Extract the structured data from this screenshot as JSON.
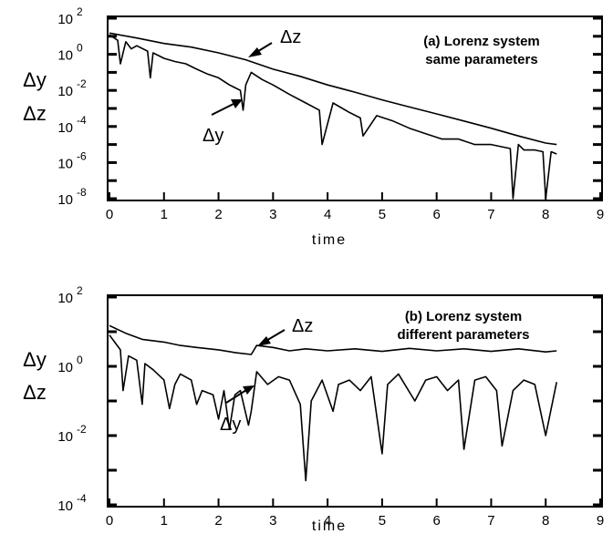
{
  "chart_data": [
    {
      "type": "line",
      "title": "(a) Lorenz system",
      "subtitle": "same parameters",
      "xlabel": "time",
      "ylabel": [
        "Δy",
        "Δz"
      ],
      "yscale": "log",
      "xlim": [
        0,
        9
      ],
      "ylim": [
        1e-08,
        100
      ],
      "x_ticks": [
        "0",
        "1",
        "2",
        "3",
        "4",
        "5",
        "6",
        "7",
        "8",
        "9"
      ],
      "y_ticks": [
        {
          "base": "10",
          "exp": "2"
        },
        {
          "base": "10",
          "exp": "0"
        },
        {
          "base": "10",
          "exp": "-2"
        },
        {
          "base": "10",
          "exp": "-4"
        },
        {
          "base": "10",
          "exp": "-6"
        },
        {
          "base": "10",
          "exp": "-8"
        }
      ],
      "annotations": [
        {
          "text": "Δz",
          "points_to_series": "Δz",
          "at_x": 2.7
        },
        {
          "text": "Δy",
          "points_to_series": "Δy",
          "at_x": 2.5
        }
      ],
      "series": [
        {
          "name": "Δz",
          "x": [
            0,
            0.5,
            1,
            1.5,
            2,
            2.5,
            3,
            3.5,
            4,
            4.5,
            5,
            5.5,
            6,
            6.5,
            7,
            7.5,
            8,
            8.2
          ],
          "y": [
            15,
            8,
            4,
            2.5,
            1.2,
            0.5,
            0.15,
            0.06,
            0.02,
            0.008,
            0.003,
            0.0012,
            0.0005,
            0.0002,
            8e-05,
            3e-05,
            1.2e-05,
            1e-05
          ]
        },
        {
          "name": "Δy",
          "x": [
            0,
            0.15,
            0.2,
            0.3,
            0.4,
            0.5,
            0.7,
            0.75,
            0.8,
            1.0,
            1.2,
            1.4,
            1.6,
            1.8,
            2.0,
            2.2,
            2.4,
            2.45,
            2.5,
            2.6,
            2.8,
            3.0,
            3.3,
            3.6,
            3.85,
            3.9,
            4.1,
            4.4,
            4.6,
            4.65,
            4.9,
            5.2,
            5.5,
            5.8,
            6.1,
            6.4,
            6.7,
            7.0,
            7.35,
            7.4,
            7.5,
            7.6,
            7.8,
            7.95,
            8.0,
            8.1,
            8.2
          ],
          "y": [
            12,
            6,
            0.3,
            5,
            2,
            3,
            1.5,
            0.05,
            1.2,
            0.6,
            0.4,
            0.3,
            0.15,
            0.08,
            0.05,
            0.02,
            0.01,
            0.0008,
            0.02,
            0.1,
            0.04,
            0.02,
            0.006,
            0.002,
            0.0008,
            1e-05,
            0.002,
            0.0006,
            0.0003,
            3e-05,
            0.0004,
            0.0002,
            8e-05,
            4e-05,
            2e-05,
            2e-05,
            1e-05,
            1e-05,
            6e-06,
            1e-08,
            1e-05,
            5e-06,
            5e-06,
            4e-06,
            1e-08,
            4e-06,
            3e-06
          ]
        }
      ]
    },
    {
      "type": "line",
      "title": "(b) Lorenz system",
      "subtitle": "different parameters",
      "xlabel": "time",
      "ylabel": [
        "Δy",
        "Δz"
      ],
      "yscale": "log",
      "xlim": [
        0,
        9
      ],
      "ylim": [
        0.0001,
        100
      ],
      "x_ticks": [
        "0",
        "1",
        "2",
        "3",
        "4",
        "5",
        "6",
        "7",
        "8",
        "9"
      ],
      "y_ticks": [
        {
          "base": "10",
          "exp": "2"
        },
        {
          "base": "10",
          "exp": "0"
        },
        {
          "base": "10",
          "exp": "-2"
        },
        {
          "base": "10",
          "exp": "-4"
        }
      ],
      "annotations": [
        {
          "text": "Δz",
          "points_to_series": "Δz",
          "at_x": 2.7
        },
        {
          "text": "Δy",
          "points_to_series": "Δy",
          "at_x": 2.6
        }
      ],
      "series": [
        {
          "name": "Δz",
          "x": [
            0,
            0.3,
            0.6,
            1.0,
            1.3,
            1.6,
            2.0,
            2.3,
            2.6,
            2.7,
            3.0,
            3.3,
            3.6,
            4.0,
            4.5,
            5.0,
            5.5,
            6.0,
            6.5,
            7.0,
            7.5,
            8.0,
            8.2
          ],
          "y": [
            15,
            9,
            6,
            5,
            4,
            3.5,
            3,
            2.5,
            2.2,
            4,
            3.5,
            2.8,
            3.2,
            2.8,
            3.2,
            2.7,
            3.3,
            2.8,
            3.2,
            2.7,
            3.2,
            2.6,
            2.8
          ]
        },
        {
          "name": "Δy",
          "x": [
            0,
            0.2,
            0.25,
            0.35,
            0.5,
            0.6,
            0.65,
            0.8,
            1.0,
            1.1,
            1.2,
            1.3,
            1.5,
            1.6,
            1.7,
            1.9,
            2.0,
            2.1,
            2.2,
            2.3,
            2.4,
            2.55,
            2.6,
            2.7,
            2.9,
            3.1,
            3.3,
            3.5,
            3.6,
            3.7,
            3.9,
            4.1,
            4.2,
            4.4,
            4.6,
            4.8,
            5.0,
            5.1,
            5.3,
            5.6,
            5.8,
            6.0,
            6.2,
            6.4,
            6.5,
            6.7,
            6.9,
            7.1,
            7.2,
            7.4,
            7.6,
            7.8,
            8.0,
            8.2
          ],
          "y": [
            8,
            3,
            0.2,
            2,
            1.5,
            0.08,
            1.2,
            0.8,
            0.4,
            0.06,
            0.3,
            0.6,
            0.4,
            0.08,
            0.2,
            0.15,
            0.03,
            0.2,
            0.015,
            0.15,
            0.2,
            0.02,
            0.05,
            0.7,
            0.3,
            0.5,
            0.4,
            0.08,
            0.0005,
            0.1,
            0.4,
            0.05,
            0.3,
            0.4,
            0.2,
            0.5,
            0.003,
            0.3,
            0.6,
            0.1,
            0.4,
            0.5,
            0.2,
            0.4,
            0.004,
            0.4,
            0.5,
            0.2,
            0.005,
            0.2,
            0.4,
            0.3,
            0.01,
            0.35
          ]
        }
      ]
    }
  ]
}
